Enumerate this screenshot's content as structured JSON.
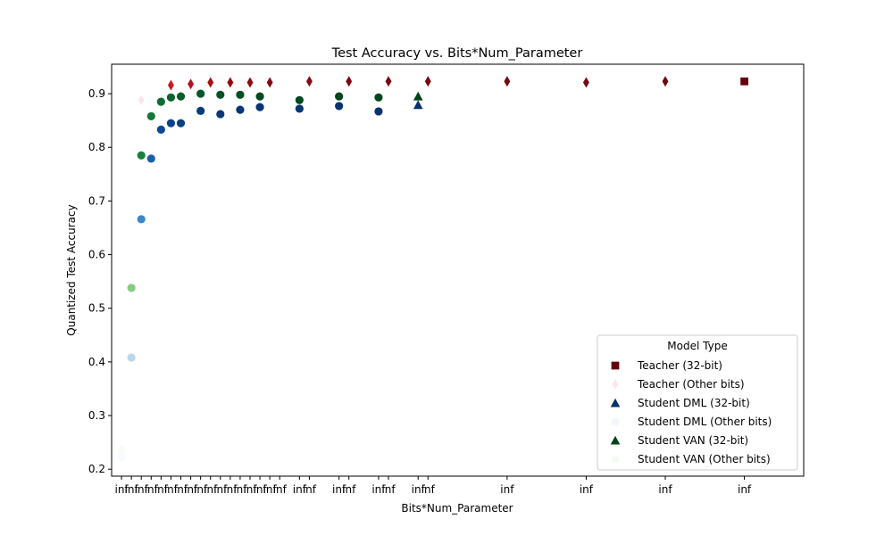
{
  "chart_data": {
    "type": "scatter",
    "title": "Test Accuracy vs. Bits*Num_Parameter",
    "xlabel": "Bits*Num_Parameter",
    "ylabel": "Quantized Test Accuracy",
    "x_domain": [
      -0.5,
      34.5
    ],
    "ylim": [
      0.187,
      0.955
    ],
    "yticks": [
      0.2,
      0.3,
      0.4,
      0.5,
      0.6,
      0.7,
      0.8,
      0.9
    ],
    "xtick_positions": [
      0,
      0.5,
      1,
      1.5,
      2,
      2.5,
      3,
      3.5,
      4,
      4.5,
      5,
      5.5,
      6,
      6.5,
      7,
      7.5,
      8,
      9,
      9.5,
      11,
      11.5,
      13,
      13.5,
      15,
      15.5,
      19.5,
      23.5,
      27.5,
      31.5
    ],
    "xtick_label": "inf",
    "legend": {
      "title": "Model Type",
      "position": "lower right",
      "entries": [
        {
          "label": "Teacher (32-bit)",
          "marker": "square",
          "color": "#67000d"
        },
        {
          "label": "Teacher (Other bits)",
          "marker": "diamond",
          "color": "#fde7ea"
        },
        {
          "label": "Student DML (32-bit)",
          "marker": "triangle",
          "color": "#08306b"
        },
        {
          "label": "Student DML (Other bits)",
          "marker": "circle",
          "color": "#f3f7fc"
        },
        {
          "label": "Student VAN (32-bit)",
          "marker": "triangle",
          "color": "#00441b"
        },
        {
          "label": "Student VAN (Other bits)",
          "marker": "circle",
          "color": "#f5fbf4"
        }
      ]
    },
    "series": [
      {
        "marker": "diamond",
        "points": [
          {
            "x": 0,
            "y": 0.229,
            "color": "#fff5f0"
          },
          {
            "x": 1,
            "y": 0.888,
            "color": "#fde6e9"
          },
          {
            "x": 2.5,
            "y": 0.916,
            "color": "#cb181d"
          },
          {
            "x": 3.5,
            "y": 0.918,
            "color": "#b3131b"
          },
          {
            "x": 4.5,
            "y": 0.921,
            "color": "#a50f15"
          },
          {
            "x": 5.5,
            "y": 0.921,
            "color": "#99000d"
          },
          {
            "x": 6.5,
            "y": 0.921,
            "color": "#8d0a10"
          },
          {
            "x": 7.5,
            "y": 0.921,
            "color": "#850a0f"
          },
          {
            "x": 9.5,
            "y": 0.923,
            "color": "#800a0f"
          },
          {
            "x": 11.5,
            "y": 0.923,
            "color": "#7a0a0e"
          },
          {
            "x": 13.5,
            "y": 0.923,
            "color": "#770a0e"
          },
          {
            "x": 15.5,
            "y": 0.923,
            "color": "#750a0e"
          },
          {
            "x": 19.5,
            "y": 0.923,
            "color": "#720a0e"
          },
          {
            "x": 23.5,
            "y": 0.921,
            "color": "#700a0e"
          },
          {
            "x": 27.5,
            "y": 0.923,
            "color": "#6e0a0e"
          }
        ]
      },
      {
        "marker": "square",
        "points": [
          {
            "x": 31.5,
            "y": 0.923,
            "color": "#67000d"
          }
        ]
      },
      {
        "marker": "circle",
        "points": [
          {
            "x": 0,
            "y": 0.221,
            "color": "#f7fbff"
          },
          {
            "x": 0.5,
            "y": 0.408,
            "color": "#bcd6ee"
          },
          {
            "x": 1,
            "y": 0.666,
            "color": "#3b88c4"
          },
          {
            "x": 1.5,
            "y": 0.779,
            "color": "#1a5fa6"
          },
          {
            "x": 2,
            "y": 0.833,
            "color": "#0d4a93"
          },
          {
            "x": 2.5,
            "y": 0.845,
            "color": "#0b4289"
          },
          {
            "x": 3,
            "y": 0.845,
            "color": "#0a3f84"
          },
          {
            "x": 4,
            "y": 0.868,
            "color": "#093a7c"
          },
          {
            "x": 5,
            "y": 0.862,
            "color": "#093879"
          },
          {
            "x": 6,
            "y": 0.87,
            "color": "#083676"
          },
          {
            "x": 7,
            "y": 0.875,
            "color": "#083573"
          },
          {
            "x": 9,
            "y": 0.872,
            "color": "#083471"
          },
          {
            "x": 11,
            "y": 0.877,
            "color": "#08336f"
          },
          {
            "x": 13,
            "y": 0.867,
            "color": "#08326d"
          }
        ]
      },
      {
        "marker": "triangle",
        "points": [
          {
            "x": 15,
            "y": 0.879,
            "color": "#08306b"
          }
        ]
      },
      {
        "marker": "circle",
        "points": [
          {
            "x": 0,
            "y": 0.236,
            "color": "#f7fcf5"
          },
          {
            "x": 0.5,
            "y": 0.538,
            "color": "#86cc85"
          },
          {
            "x": 1,
            "y": 0.785,
            "color": "#17813d"
          },
          {
            "x": 1.5,
            "y": 0.858,
            "color": "#137836"
          },
          {
            "x": 2,
            "y": 0.885,
            "color": "#0e6d31"
          },
          {
            "x": 2.5,
            "y": 0.893,
            "color": "#0a632c"
          },
          {
            "x": 3,
            "y": 0.895,
            "color": "#085e29"
          },
          {
            "x": 4,
            "y": 0.9,
            "color": "#055826"
          },
          {
            "x": 5,
            "y": 0.898,
            "color": "#045324"
          },
          {
            "x": 6,
            "y": 0.898,
            "color": "#034f22"
          },
          {
            "x": 7,
            "y": 0.895,
            "color": "#024b20"
          },
          {
            "x": 9,
            "y": 0.888,
            "color": "#02491f"
          },
          {
            "x": 11,
            "y": 0.895,
            "color": "#01471e"
          },
          {
            "x": 13,
            "y": 0.893,
            "color": "#01461d"
          }
        ]
      },
      {
        "marker": "triangle",
        "points": [
          {
            "x": 15,
            "y": 0.895,
            "color": "#00441b"
          }
        ]
      }
    ]
  }
}
